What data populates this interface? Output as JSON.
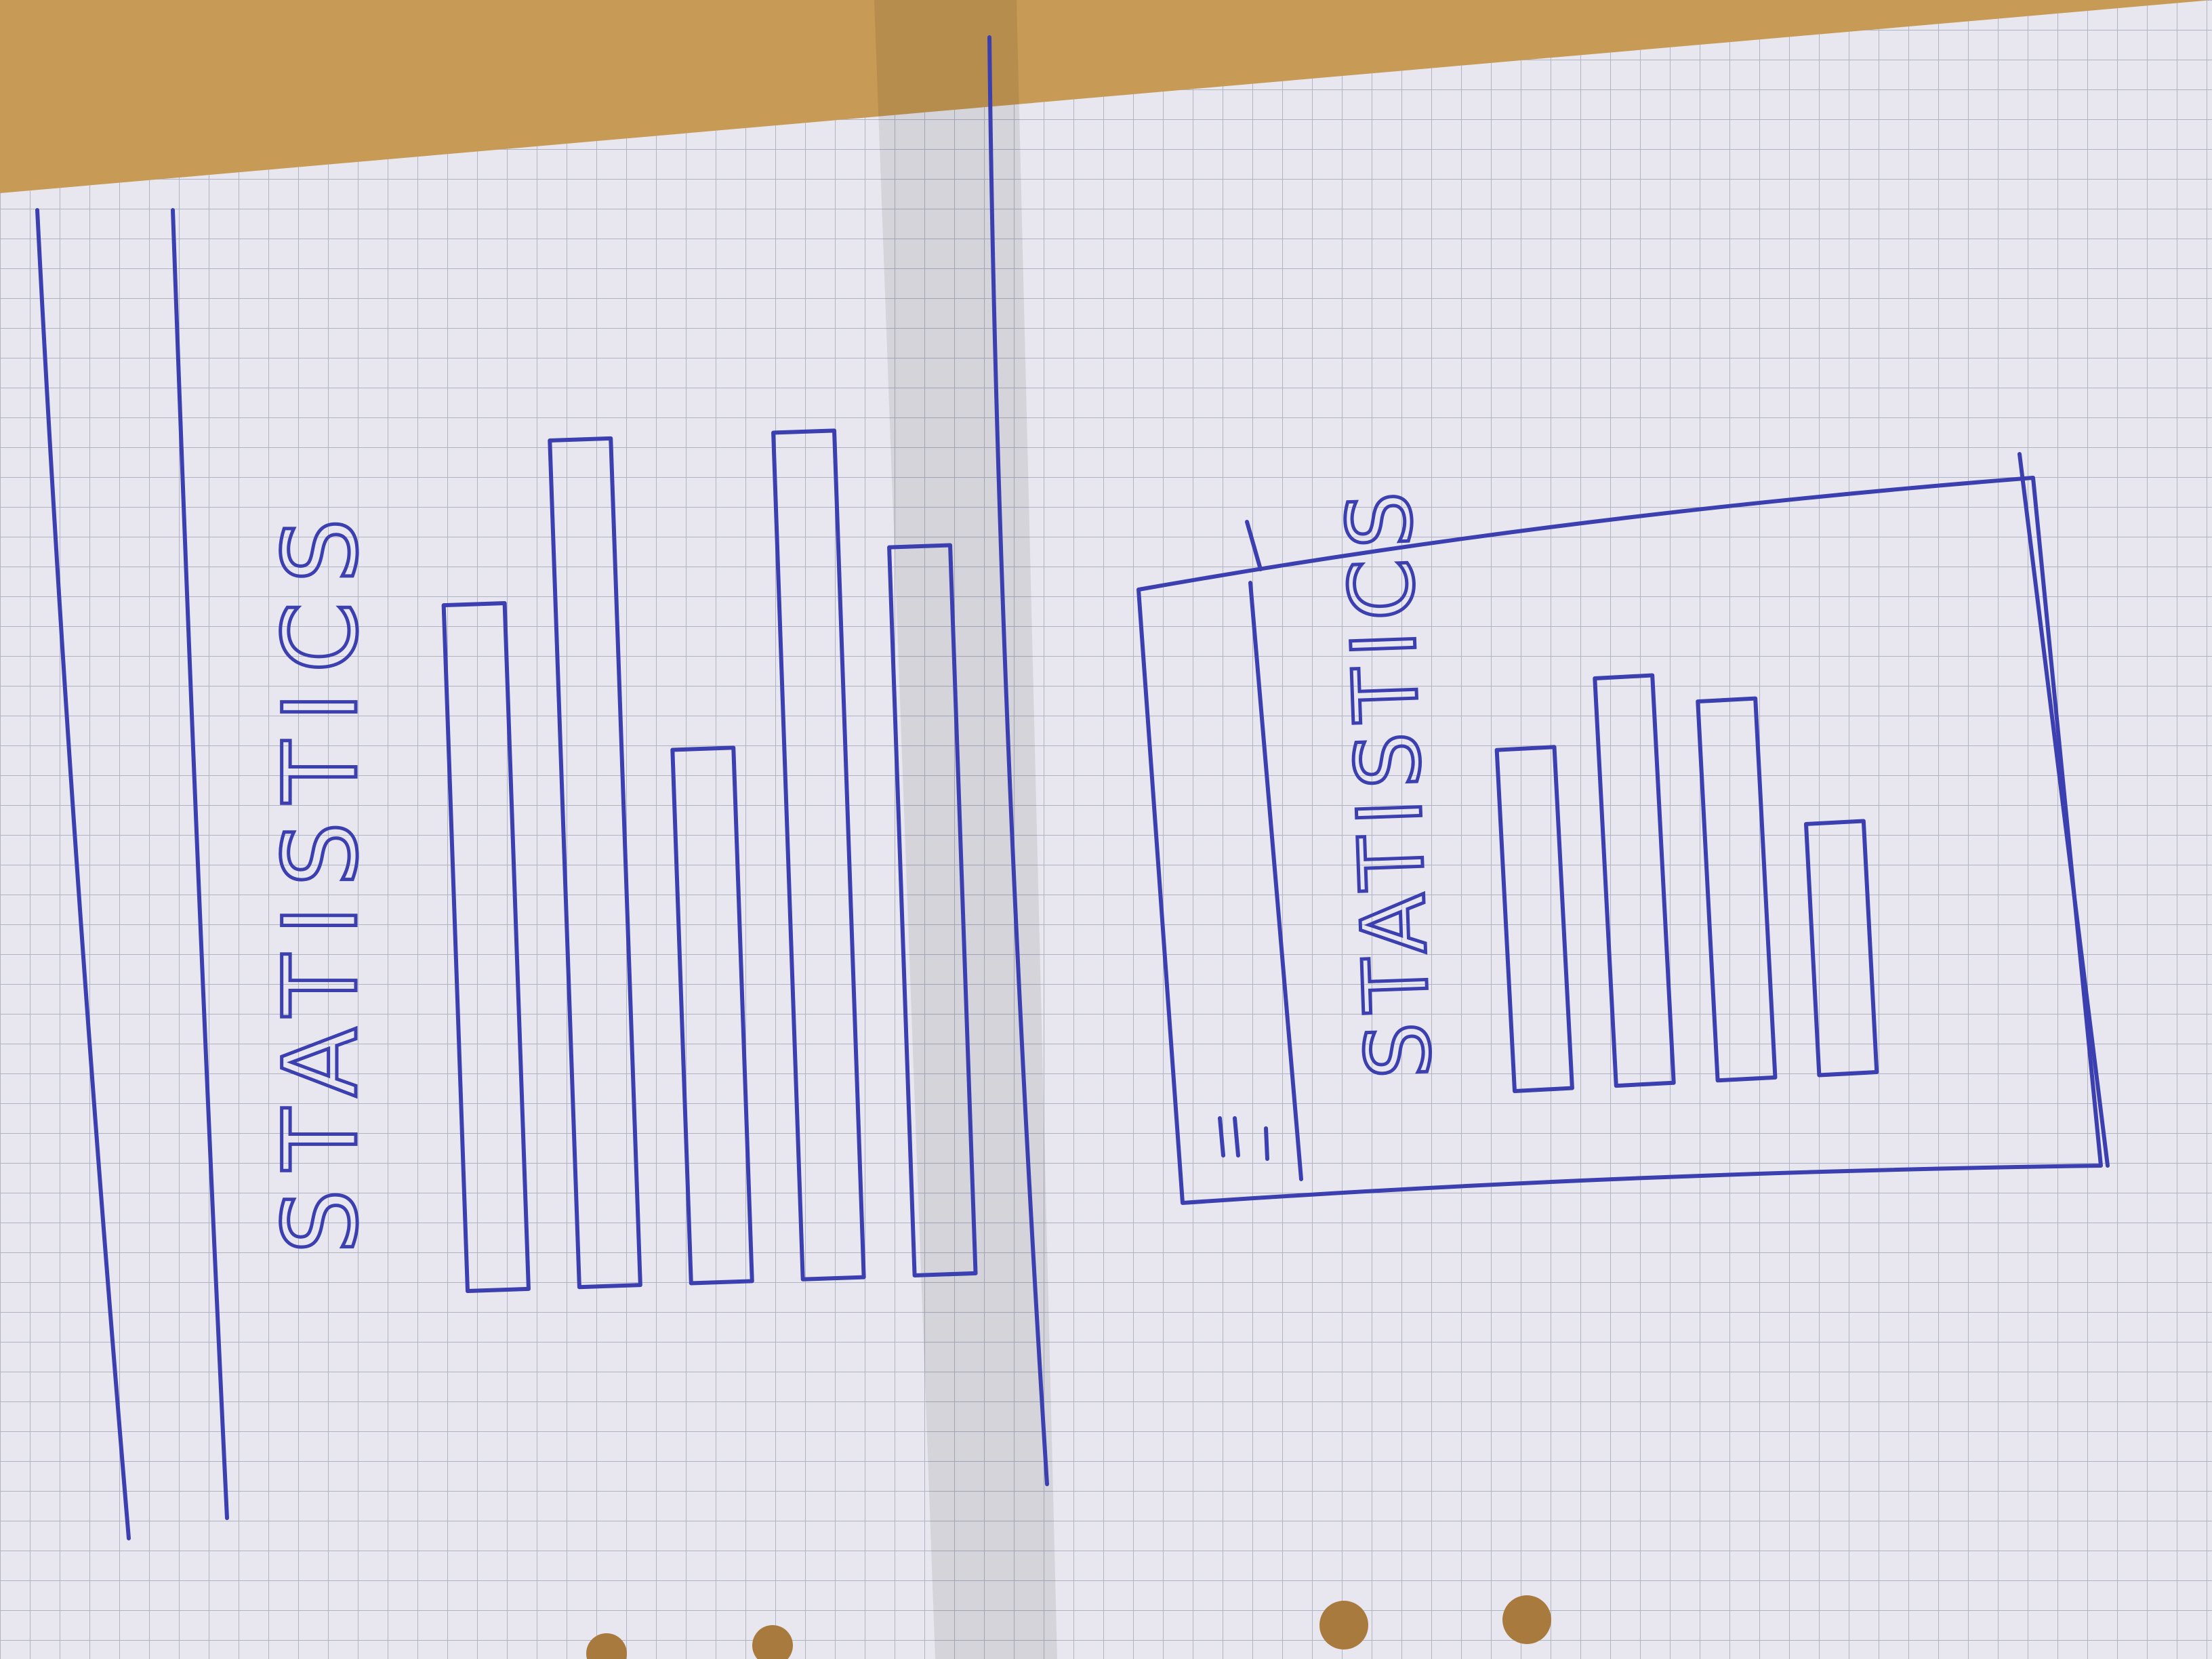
{
  "colors": {
    "desk": "#c79a55",
    "desk_dark": "#9c7642",
    "paper": "#e8e6ee",
    "paper_shadow": "#d6d4dc",
    "grid": "#aeb3c4",
    "ink": "#3b3fb0",
    "punch_hole": "#a87a3e"
  },
  "sketches": [
    {
      "id": "left",
      "heading": "STATISTICS",
      "chart_data": {
        "type": "bar",
        "title": "STATISTICS",
        "categories": [
          "",
          "",
          "",
          "",
          ""
        ],
        "values": [
          81,
          100,
          63,
          100,
          86
        ],
        "ylim": [
          0,
          100
        ],
        "note": ""
      }
    },
    {
      "id": "right",
      "heading": "STATISTICS",
      "chart_data": {
        "type": "bar",
        "title": "STATISTICS",
        "categories": [
          "",
          "",
          "",
          ""
        ],
        "values": [
          72,
          86,
          80,
          53
        ],
        "ylim": [
          0,
          100
        ]
      }
    }
  ]
}
